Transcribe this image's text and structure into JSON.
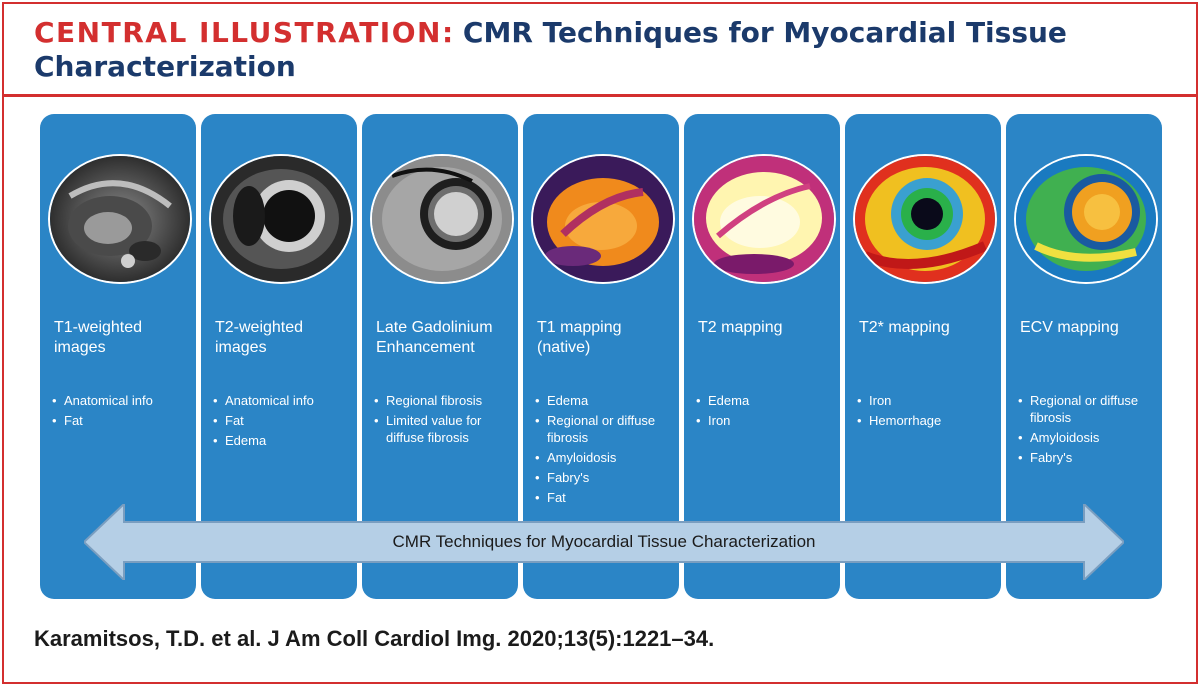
{
  "header": {
    "label": "CENTRAL ILLUSTRATION",
    "separator": ":",
    "title": "CMR Techniques for Myocardial Tissue Characterization"
  },
  "colors": {
    "accent_red": "#d32f2f",
    "panel_blue": "#2b85c6",
    "title_navy": "#1b3a6b",
    "arrow_fill": "#b5cfe6"
  },
  "panels": [
    {
      "title": "T1-weighted images",
      "image": "t1-weighted-cmr-image",
      "items": [
        "Anatomical info",
        "Fat"
      ]
    },
    {
      "title": "T2-weighted images",
      "image": "t2-weighted-cmr-image",
      "items": [
        "Anatomical info",
        "Fat",
        "Edema"
      ]
    },
    {
      "title": "Late Gadolinium Enhancement",
      "image": "lge-cmr-image",
      "items": [
        "Regional fibrosis",
        "Limited value for diffuse fibrosis"
      ]
    },
    {
      "title": "T1 mapping (native)",
      "image": "t1-map-image",
      "items": [
        "Edema",
        "Regional or diffuse fibrosis",
        "Amyloidosis",
        "Fabry's",
        "Fat"
      ]
    },
    {
      "title": "T2 mapping",
      "image": "t2-map-image",
      "items": [
        "Edema",
        "Iron"
      ]
    },
    {
      "title": "T2* mapping",
      "image": "t2-star-map-image",
      "items": [
        "Iron",
        "Hemorrhage"
      ]
    },
    {
      "title": "ECV mapping",
      "image": "ecv-map-image",
      "items": [
        "Regional or diffuse fibrosis",
        "Amyloidosis",
        "Fabry's"
      ]
    }
  ],
  "arrow": {
    "label": "CMR Techniques for Myocardial Tissue Characterization"
  },
  "citation": "Karamitsos, T.D. et al. J Am Coll Cardiol Img. 2020;13(5):1221–34."
}
